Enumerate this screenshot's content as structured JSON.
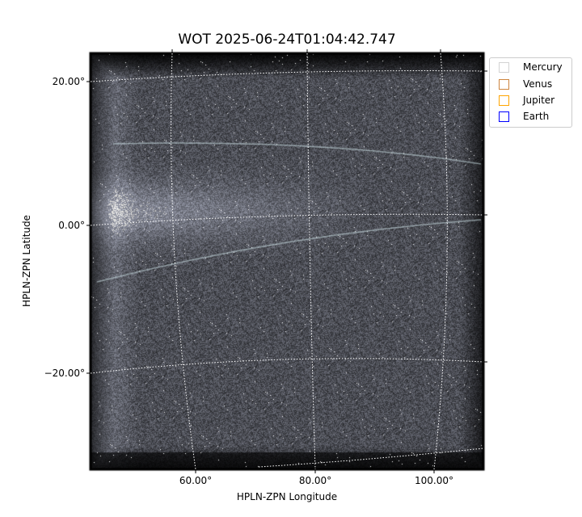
{
  "chart_data": {
    "type": "heatmap",
    "title": "WOT 2025-06-24T01:04:42.747",
    "xlabel": "HPLN-ZPN Longitude",
    "ylabel": "HPLN-ZPN Latitude",
    "x_ticks": [
      "60.00°",
      "80.00°",
      "100.00°"
    ],
    "y_ticks": [
      "20.00°",
      "0.00°",
      "−20.00°"
    ],
    "colormap": "bone",
    "grid": true,
    "legend_position": "outside-top-right",
    "legend": [
      {
        "label": "Mercury",
        "color": "#d3d3d3"
      },
      {
        "label": "Venus",
        "color": "#cd853f"
      },
      {
        "label": "Jupiter",
        "color": "#ffa500"
      },
      {
        "label": "Earth",
        "color": "#0000ff"
      }
    ]
  }
}
